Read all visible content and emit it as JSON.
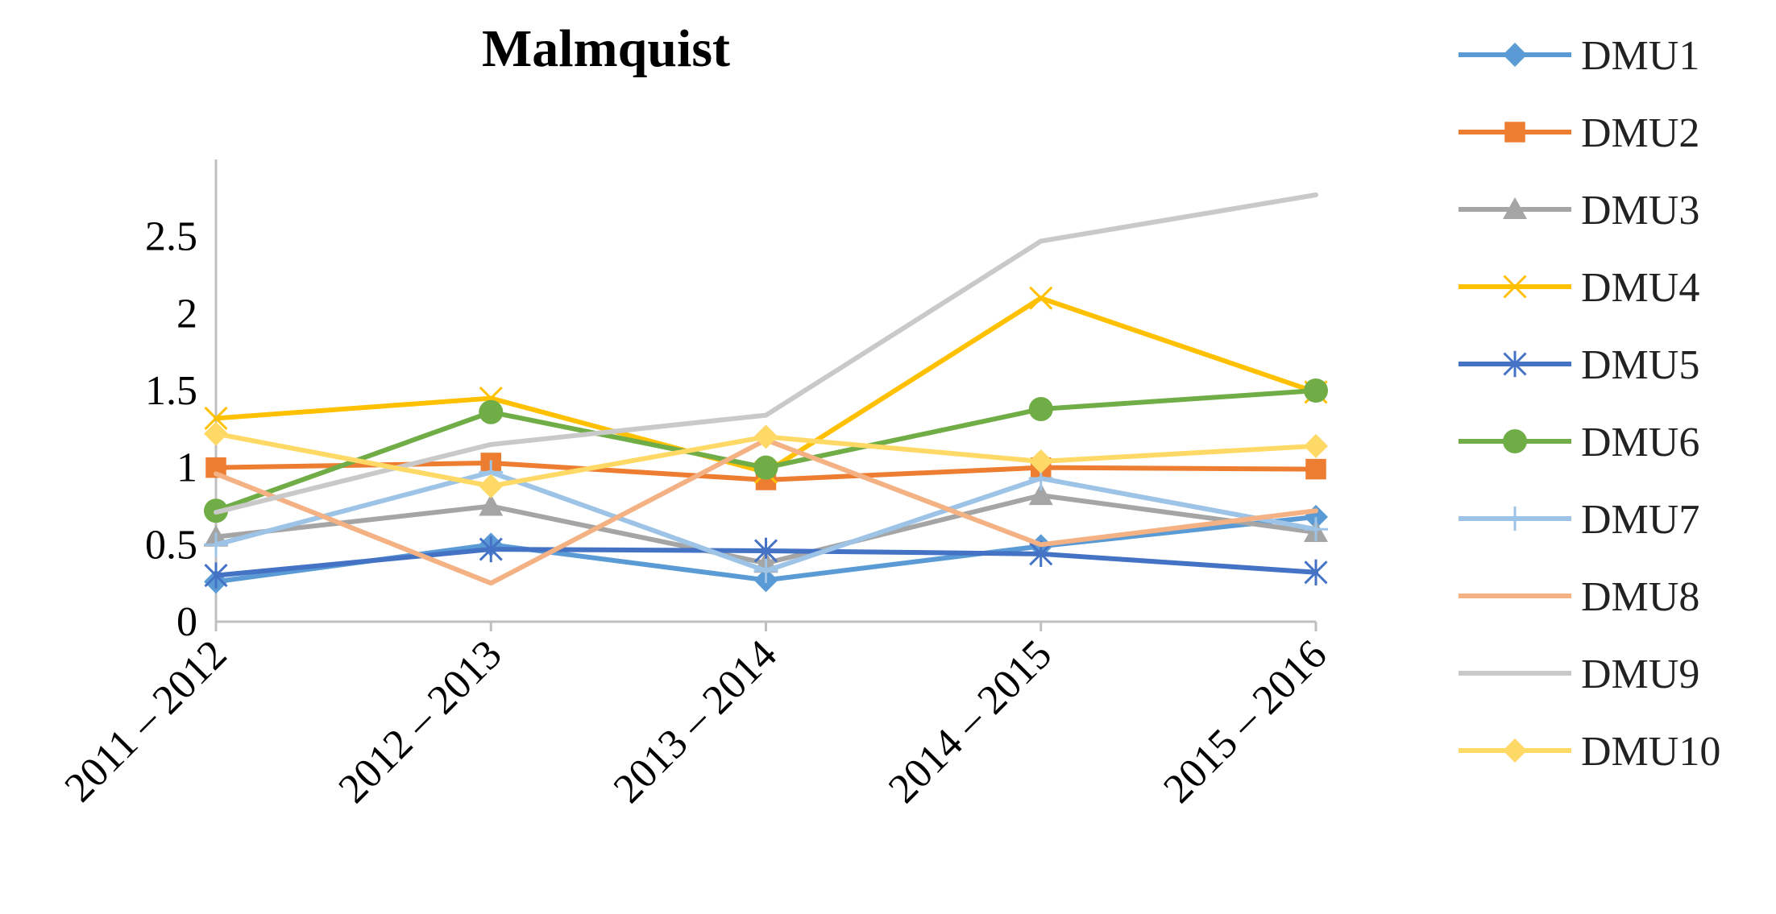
{
  "chart_data": {
    "type": "line",
    "title": "Malmquist",
    "xlabel": "",
    "ylabel": "",
    "categories": [
      "2011 – 2012",
      "2012 – 2013",
      "2013 – 2014",
      "2014 – 2015",
      "2015 – 2016"
    ],
    "ylim": [
      0,
      3
    ],
    "y_ticks": [
      "0",
      "0.5",
      "1",
      "1.5",
      "2",
      "2.5"
    ],
    "grid": false,
    "legend_position": "right",
    "series": [
      {
        "name": "DMU1",
        "color": "#5B9BD5",
        "marker": "diamond",
        "values": [
          0.26,
          0.5,
          0.27,
          0.49,
          0.68
        ]
      },
      {
        "name": "DMU2",
        "color": "#ED7D31",
        "marker": "square",
        "values": [
          1.0,
          1.03,
          0.92,
          1.0,
          0.99
        ]
      },
      {
        "name": "DMU3",
        "color": "#A5A5A5",
        "marker": "triangle",
        "values": [
          0.55,
          0.75,
          0.38,
          0.82,
          0.58
        ]
      },
      {
        "name": "DMU4",
        "color": "#FFC000",
        "marker": "x",
        "values": [
          1.32,
          1.45,
          0.97,
          2.1,
          1.49
        ]
      },
      {
        "name": "DMU5",
        "color": "#4472C4",
        "marker": "star",
        "values": [
          0.3,
          0.47,
          0.46,
          0.44,
          0.32
        ]
      },
      {
        "name": "DMU6",
        "color": "#70AD47",
        "marker": "circle",
        "values": [
          0.72,
          1.36,
          1.0,
          1.38,
          1.5
        ]
      },
      {
        "name": "DMU7",
        "color": "#9DC3E6",
        "marker": "plus",
        "values": [
          0.5,
          0.97,
          0.33,
          0.93,
          0.6
        ]
      },
      {
        "name": "DMU8",
        "color": "#F4B183",
        "marker": "none",
        "values": [
          0.96,
          0.25,
          1.18,
          0.5,
          0.72
        ]
      },
      {
        "name": "DMU9",
        "color": "#C9C9C9",
        "marker": "none",
        "values": [
          0.71,
          1.15,
          1.34,
          2.47,
          2.77
        ]
      },
      {
        "name": "DMU10",
        "color": "#FFD966",
        "marker": "diamond",
        "values": [
          1.22,
          0.88,
          1.2,
          1.04,
          1.14
        ]
      }
    ]
  }
}
